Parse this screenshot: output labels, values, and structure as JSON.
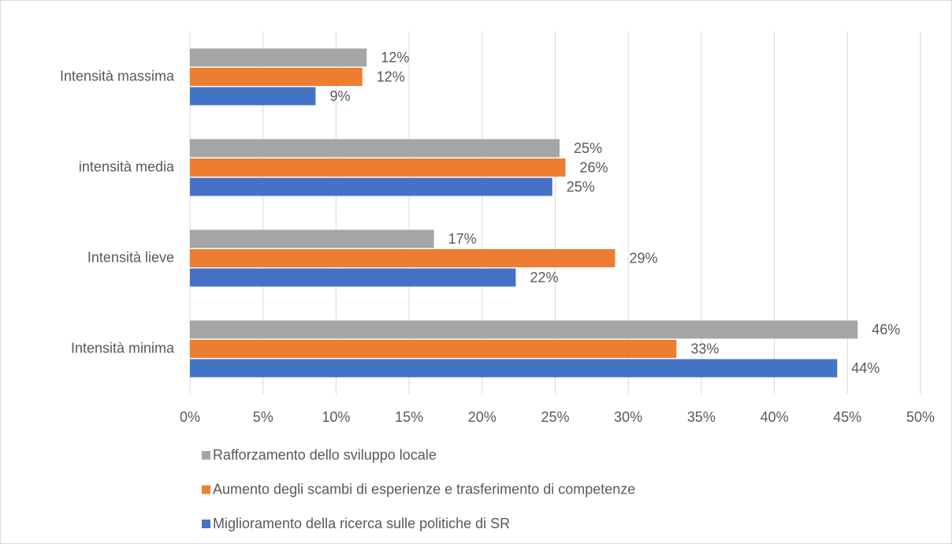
{
  "chart_data": {
    "type": "hbar",
    "categories": [
      "Intensità massima",
      "intensità media",
      "Intensità lieve",
      "Intensità minima"
    ],
    "series": [
      {
        "name": "Rafforzamento dello sviluppo locale",
        "color": "#a5a5a5",
        "values": [
          12.1,
          25.3,
          16.7,
          45.7
        ],
        "value_labels": [
          "12%",
          "25%",
          "17%",
          "46%"
        ]
      },
      {
        "name": "Aumento degli scambi di esperienze e trasferimento di competenze",
        "color": "#ed7d31",
        "values": [
          11.8,
          25.7,
          29.1,
          33.3
        ],
        "value_labels": [
          "12%",
          "26%",
          "29%",
          "33%"
        ]
      },
      {
        "name": "Miglioramento della ricerca sulle politiche di SR",
        "color": "#4472c4",
        "values": [
          8.6,
          24.8,
          22.3,
          44.3
        ],
        "value_labels": [
          "9%",
          "25%",
          "22%",
          "44%"
        ]
      }
    ],
    "xlim": [
      0,
      50
    ],
    "xticks": [
      {
        "value": 0,
        "label": "0%"
      },
      {
        "value": 5,
        "label": "5%"
      },
      {
        "value": 10,
        "label": "10%"
      },
      {
        "value": 15,
        "label": "15%"
      },
      {
        "value": 20,
        "label": "20%"
      },
      {
        "value": 25,
        "label": "25%"
      },
      {
        "value": 30,
        "label": "30%"
      },
      {
        "value": 35,
        "label": "35%"
      },
      {
        "value": 40,
        "label": "40%"
      },
      {
        "value": 45,
        "label": "45%"
      },
      {
        "value": 50,
        "label": "50%"
      }
    ],
    "grid": true
  }
}
